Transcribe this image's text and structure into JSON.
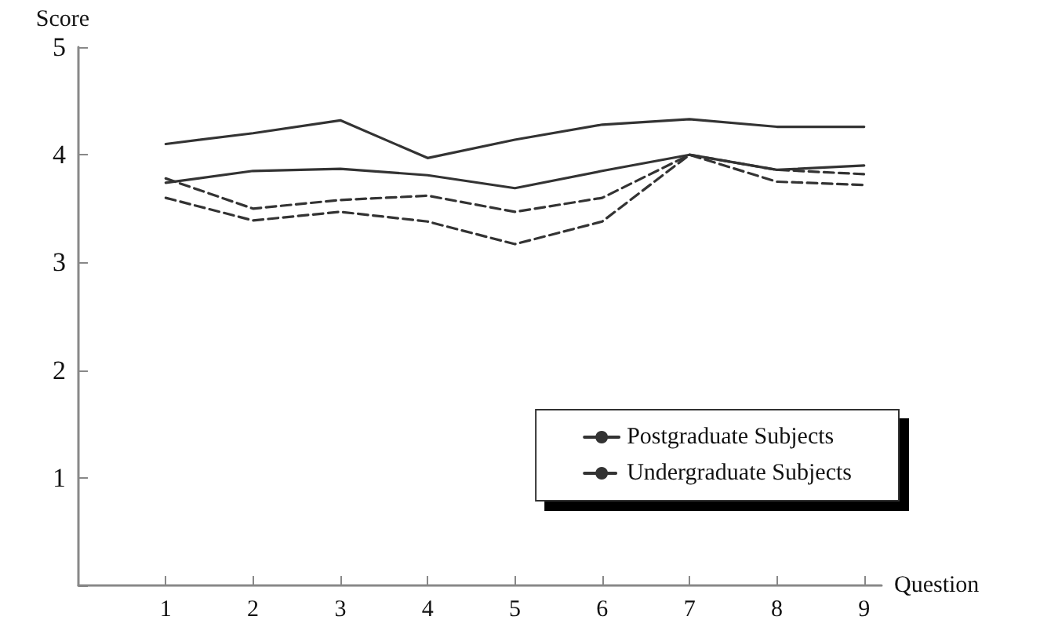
{
  "chart_data": {
    "type": "line",
    "xlabel": "Question",
    "ylabel": "Score",
    "x": [
      1,
      2,
      3,
      4,
      5,
      6,
      7,
      8,
      9
    ],
    "xlim": [
      0,
      9.2
    ],
    "xticks": [
      1,
      2,
      3,
      4,
      5,
      6,
      7,
      8,
      9
    ],
    "ylim": [
      0,
      5
    ],
    "yticks": [
      {
        "value": 0,
        "label": null
      },
      1,
      2,
      3,
      4,
      5
    ],
    "grid": false,
    "legend": "bottom right",
    "marker": "none",
    "series": [
      {
        "name": "Postgraduate Subjects",
        "color": "#333333",
        "line_style": "solid",
        "values": [
          4.1,
          4.2,
          4.32,
          3.97,
          4.14,
          4.28,
          4.33,
          4.26,
          4.26
        ]
      },
      {
        "color": "#333333",
        "line_style": "solid",
        "values": [
          3.74,
          3.85,
          3.87,
          3.81,
          3.69,
          3.85,
          4.0,
          3.86,
          3.9
        ]
      },
      {
        "name": "Undergraduate Subjects",
        "color": "#333333",
        "line_style": "dashed",
        "values": [
          3.78,
          3.5,
          3.58,
          3.62,
          3.47,
          3.6,
          4.0,
          3.86,
          3.82
        ]
      },
      {
        "color": "#333333",
        "line_style": "dashed",
        "values": [
          3.6,
          3.39,
          3.47,
          3.38,
          3.17,
          3.38,
          4.0,
          3.75,
          3.72
        ]
      }
    ]
  }
}
